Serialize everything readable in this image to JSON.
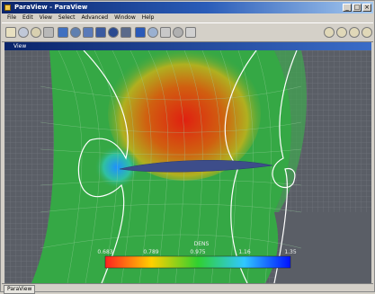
{
  "window": {
    "title": "ParaView - ParaView",
    "buttons": {
      "minimize": "_",
      "maximize": "□",
      "close": "×"
    }
  },
  "menu": {
    "items": [
      "File",
      "Edit",
      "View",
      "Select",
      "Advanced",
      "Window",
      "Help"
    ]
  },
  "view": {
    "title": "View",
    "colorbar": {
      "title": "DENS",
      "ticks": [
        "0.683",
        "0.789",
        "0.975",
        "1.16",
        "1.35"
      ],
      "colors": [
        "#ff2020",
        "#ffd000",
        "#30d030",
        "#30c8ff",
        "#0010ff"
      ]
    },
    "scene": {
      "background": "#5a5e66",
      "field_color": "#35a845",
      "high_density_color": "#e02010",
      "low_density_color": "#1e90ff",
      "airfoil_color": "#3d4d8a",
      "contour_color": "#ffffff"
    }
  },
  "statusbar": {
    "tab": "ParaView"
  },
  "icons": {
    "toolbar": [
      "open-icon",
      "save-icon",
      "undo-icon",
      "connect-icon",
      "cut-icon",
      "view-icon",
      "camera-icon",
      "filter-icon",
      "probe-icon",
      "glyph-icon",
      "contour-icon",
      "clip-icon",
      "slice-icon",
      "threshold-icon",
      "arrow-icon",
      "camera-reset-icon",
      "rotate-icon",
      "zoom-icon",
      "pan-icon"
    ]
  }
}
